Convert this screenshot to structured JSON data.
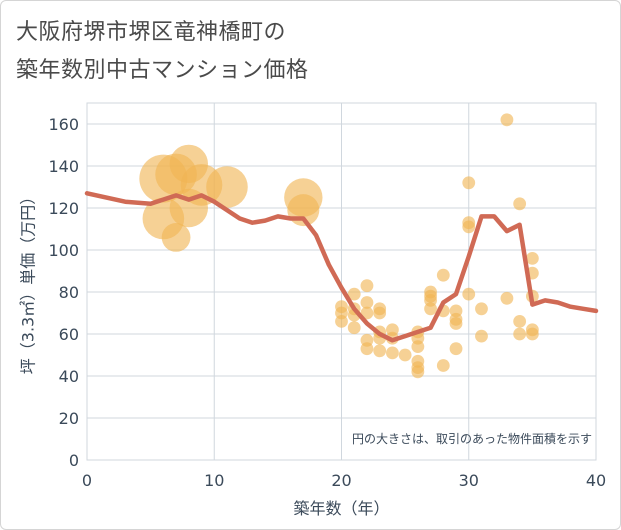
{
  "title_line1": "大阪府堺市堺区竜神橋町の",
  "title_line2": "築年数別中古マンション価格",
  "colors": {
    "bubble": "#f0b554",
    "line": "#d06a55",
    "grid": "#d0d7de",
    "text": "#3b4a5a"
  },
  "chart_data": {
    "type": "scatter",
    "xlabel": "築年数（年）",
    "ylabel": "坪（3.3㎡）単価（万円）",
    "xlim": [
      0,
      40
    ],
    "ylim": [
      0,
      170
    ],
    "xticks": [
      "0",
      "10",
      "20",
      "30",
      "40"
    ],
    "yticks": [
      "0",
      "20",
      "40",
      "60",
      "80",
      "100",
      "120",
      "140",
      "160"
    ],
    "annotation": "円の大きさは、取引のあった物件面積を示す",
    "points": [
      {
        "x": 6,
        "y": 134,
        "s": 3
      },
      {
        "x": 7,
        "y": 136,
        "s": 2.6
      },
      {
        "x": 8,
        "y": 141,
        "s": 2.4
      },
      {
        "x": 9,
        "y": 131,
        "s": 2.6
      },
      {
        "x": 8,
        "y": 120,
        "s": 2.4
      },
      {
        "x": 6,
        "y": 115,
        "s": 2.6
      },
      {
        "x": 7,
        "y": 106,
        "s": 1.8
      },
      {
        "x": 11,
        "y": 130,
        "s": 2.6
      },
      {
        "x": 17,
        "y": 125,
        "s": 2.4
      },
      {
        "x": 17,
        "y": 119,
        "s": 2
      },
      {
        "x": 20,
        "y": 73,
        "s": 0.8
      },
      {
        "x": 20,
        "y": 70,
        "s": 0.8
      },
      {
        "x": 20,
        "y": 66,
        "s": 0.8
      },
      {
        "x": 21,
        "y": 79,
        "s": 0.8
      },
      {
        "x": 21,
        "y": 72,
        "s": 0.8
      },
      {
        "x": 21,
        "y": 69,
        "s": 0.8
      },
      {
        "x": 21,
        "y": 63,
        "s": 0.8
      },
      {
        "x": 22,
        "y": 83,
        "s": 0.8
      },
      {
        "x": 22,
        "y": 75,
        "s": 0.8
      },
      {
        "x": 22,
        "y": 70,
        "s": 0.8
      },
      {
        "x": 22,
        "y": 57,
        "s": 0.8
      },
      {
        "x": 22,
        "y": 53,
        "s": 0.8
      },
      {
        "x": 23,
        "y": 72,
        "s": 0.8
      },
      {
        "x": 23,
        "y": 70,
        "s": 0.8
      },
      {
        "x": 23,
        "y": 61,
        "s": 0.8
      },
      {
        "x": 23,
        "y": 58,
        "s": 0.8
      },
      {
        "x": 23,
        "y": 52,
        "s": 0.8
      },
      {
        "x": 24,
        "y": 62,
        "s": 0.8
      },
      {
        "x": 24,
        "y": 58,
        "s": 0.8
      },
      {
        "x": 24,
        "y": 51,
        "s": 0.8
      },
      {
        "x": 25,
        "y": 50,
        "s": 0.8
      },
      {
        "x": 26,
        "y": 61,
        "s": 0.8
      },
      {
        "x": 26,
        "y": 58,
        "s": 0.8
      },
      {
        "x": 26,
        "y": 54,
        "s": 0.8
      },
      {
        "x": 26,
        "y": 47,
        "s": 0.8
      },
      {
        "x": 26,
        "y": 44,
        "s": 0.8
      },
      {
        "x": 26,
        "y": 42,
        "s": 0.8
      },
      {
        "x": 27,
        "y": 80,
        "s": 0.8
      },
      {
        "x": 27,
        "y": 78,
        "s": 0.8
      },
      {
        "x": 27,
        "y": 76,
        "s": 0.8
      },
      {
        "x": 27,
        "y": 72,
        "s": 0.8
      },
      {
        "x": 28,
        "y": 88,
        "s": 0.8
      },
      {
        "x": 28,
        "y": 71,
        "s": 0.8
      },
      {
        "x": 28,
        "y": 45,
        "s": 0.8
      },
      {
        "x": 29,
        "y": 71,
        "s": 0.8
      },
      {
        "x": 29,
        "y": 67,
        "s": 0.8
      },
      {
        "x": 29,
        "y": 65,
        "s": 0.8
      },
      {
        "x": 29,
        "y": 53,
        "s": 0.8
      },
      {
        "x": 30,
        "y": 132,
        "s": 0.8
      },
      {
        "x": 30,
        "y": 113,
        "s": 0.8
      },
      {
        "x": 30,
        "y": 111,
        "s": 0.8
      },
      {
        "x": 30,
        "y": 79,
        "s": 0.8
      },
      {
        "x": 31,
        "y": 72,
        "s": 0.8
      },
      {
        "x": 31,
        "y": 59,
        "s": 0.8
      },
      {
        "x": 33,
        "y": 162,
        "s": 0.8
      },
      {
        "x": 33,
        "y": 77,
        "s": 0.8
      },
      {
        "x": 34,
        "y": 122,
        "s": 0.8
      },
      {
        "x": 34,
        "y": 66,
        "s": 0.8
      },
      {
        "x": 34,
        "y": 60,
        "s": 0.8
      },
      {
        "x": 35,
        "y": 96,
        "s": 0.8
      },
      {
        "x": 35,
        "y": 89,
        "s": 0.8
      },
      {
        "x": 35,
        "y": 78,
        "s": 0.8
      },
      {
        "x": 35,
        "y": 62,
        "s": 0.8
      },
      {
        "x": 35,
        "y": 60,
        "s": 0.8
      }
    ],
    "series": [
      {
        "x": [
          0,
          3,
          5,
          7,
          8,
          9,
          10,
          12,
          13,
          14,
          15,
          16,
          17,
          18,
          19,
          20,
          21,
          22,
          23,
          24,
          25,
          26,
          27,
          28,
          29,
          30,
          31,
          32,
          33,
          34,
          35,
          36,
          37,
          38,
          39,
          40
        ],
        "y": [
          127,
          123,
          122,
          126,
          124,
          126,
          123,
          115,
          113,
          114,
          116,
          115,
          115,
          107,
          93,
          82,
          72,
          65,
          60,
          57,
          59,
          61,
          63,
          75,
          79,
          97,
          116,
          116,
          109,
          112,
          74,
          76,
          75,
          73,
          72,
          71
        ]
      }
    ]
  }
}
